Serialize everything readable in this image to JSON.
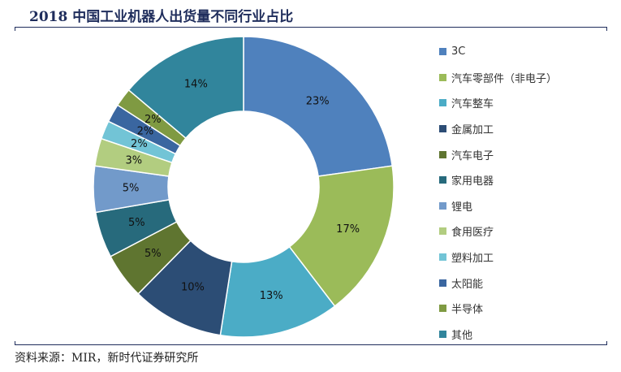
{
  "title": "2018 中国工业机器人出货量不同行业占比",
  "source": "资料来源：MIR，新时代证券研究所",
  "chart_data": {
    "type": "pie",
    "donut": true,
    "title": "2018 中国工业机器人出货量不同行业占比",
    "legend_position": "right",
    "unit": "%",
    "slices": [
      {
        "label": "3C",
        "value": 23,
        "value_label": "23%",
        "color": "#4f81bd"
      },
      {
        "label": "汽车零部件（非电子）",
        "value": 17,
        "value_label": "17%",
        "color": "#9bbb59"
      },
      {
        "label": "汽车整车",
        "value": 13,
        "value_label": "13%",
        "color": "#4bacc6"
      },
      {
        "label": "金属加工",
        "value": 10,
        "value_label": "10%",
        "color": "#2c4d75"
      },
      {
        "label": "汽车电子",
        "value": 5,
        "value_label": "5%",
        "color": "#5f7530"
      },
      {
        "label": "家用电器",
        "value": 5,
        "value_label": "5%",
        "color": "#276a7c"
      },
      {
        "label": "锂电",
        "value": 5,
        "value_label": "5%",
        "color": "#729aca"
      },
      {
        "label": "食用医疗",
        "value": 3,
        "value_label": "3%",
        "color": "#b2cd80"
      },
      {
        "label": "塑料加工",
        "value": 2,
        "value_label": "2%",
        "color": "#72c4d6"
      },
      {
        "label": "太阳能",
        "value": 2,
        "value_label": "2%",
        "color": "#3a66a0"
      },
      {
        "label": "半导体",
        "value": 2,
        "value_label": "2%",
        "color": "#7f9a42"
      },
      {
        "label": "其他",
        "value": 14,
        "value_label": "14%",
        "color": "#31859c"
      }
    ]
  }
}
